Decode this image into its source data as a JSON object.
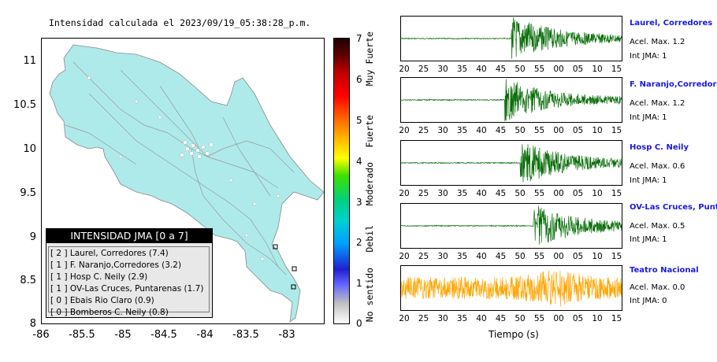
{
  "title": "Intensidad calculada el 2023/09/19_05:38:28_p.m.",
  "map": {
    "y_ticks": [
      "11",
      "10.5",
      "10",
      "9.5",
      "9",
      "8.5",
      "8"
    ],
    "x_ticks": [
      "-86",
      "-85.5",
      "-85",
      "-84.5",
      "-84",
      "-83.5",
      "-83"
    ]
  },
  "legend": {
    "header": "INTENSIDAD JMA [0 a 7]",
    "rows": [
      "[ 2 ]  Laurel, Corredores (7.4)",
      "[ 1 ]  F. Naranjo,Corredores (3.2)",
      "[ 1 ]  Hosp C. Neily (2.9)",
      "[ 1 ]  OV-Las Cruces, Puntarenas (1.7)",
      "[ 0 ]  Ebais Rio Claro (0.9)",
      "[ 0 ]  Bomberos C. Neily (0.8)"
    ]
  },
  "colorbar": {
    "ticks": [
      "7",
      "6",
      "5",
      "4",
      "3",
      "2",
      "1",
      "0"
    ],
    "labels": [
      "Muy Fuerte",
      "Fuerte",
      "Moderado",
      "Debil",
      "No sentido"
    ]
  },
  "traces": [
    {
      "name": "Laurel, Corredores",
      "accel": "Acel. Max. 1.2",
      "int": "Int JMA: 1",
      "color": "#0a6e0a",
      "onset": 0.5
    },
    {
      "name": "F. Naranjo,Corredores",
      "accel": "Acel. Max. 1.2",
      "int": "Int JMA: 1",
      "color": "#0a6e0a",
      "onset": 0.47
    },
    {
      "name": "Hosp C. Neily",
      "accel": "Acel. Max. 0.6",
      "int": "Int JMA: 1",
      "color": "#0a6e0a",
      "onset": 0.54
    },
    {
      "name": "OV-Las Cruces, Puntar",
      "accel": "Acel. Max. 0.5",
      "int": "Int JMA: 1",
      "color": "#0a6e0a",
      "onset": 0.6
    },
    {
      "name": "Teatro Nacional",
      "accel": "Acel. Max. 0.0",
      "int": "Int JMA: 0",
      "color": "#ffa500",
      "onset": -1
    }
  ],
  "time_ticks": [
    "20",
    "25",
    "30",
    "35",
    "40",
    "45",
    "50",
    "55",
    "00",
    "05",
    "10",
    "15"
  ],
  "time_label": "Tiempo (s)"
}
